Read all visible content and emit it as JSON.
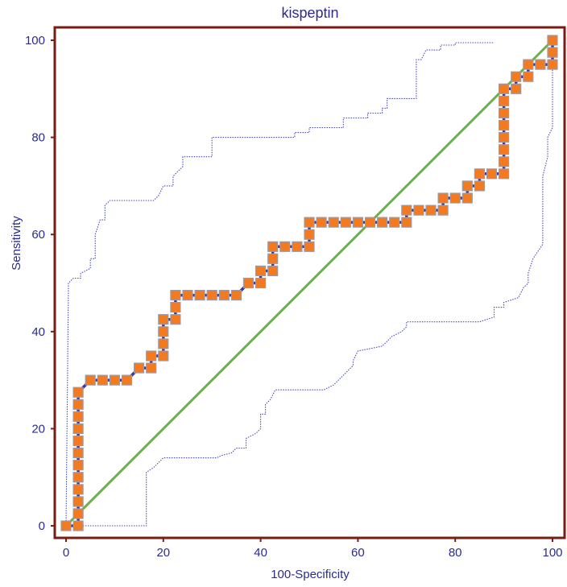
{
  "chart_data": {
    "type": "line",
    "title": "kispeptin",
    "xlabel": "100-Specificity",
    "ylabel": "Sensitivity",
    "xlim": [
      0,
      100
    ],
    "ylim": [
      0,
      100
    ],
    "xticks": [
      "0",
      "20",
      "40",
      "60",
      "80",
      "100"
    ],
    "yticks": [
      "0",
      "20",
      "40",
      "60",
      "80",
      "100"
    ],
    "grid": false,
    "colors": {
      "frame": "#7a1c14",
      "roc_line": "#3a36a0",
      "marker_fill": "#f47a20",
      "marker_edge": "#9a9aa8",
      "reference": "#6ab04c",
      "ci_bounds": "#4a4ab8",
      "text": "#2b2b8f"
    },
    "series": [
      {
        "style": "roc-curve-with-markers",
        "points": [
          [
            0,
            0
          ],
          [
            2.5,
            0
          ],
          [
            2.5,
            2.5
          ],
          [
            2.5,
            5
          ],
          [
            2.5,
            7.5
          ],
          [
            2.5,
            10
          ],
          [
            2.5,
            12.5
          ],
          [
            2.5,
            15
          ],
          [
            2.5,
            17.5
          ],
          [
            2.5,
            20
          ],
          [
            2.5,
            22.5
          ],
          [
            2.5,
            25
          ],
          [
            2.5,
            27.5
          ],
          [
            5,
            30
          ],
          [
            7.5,
            30
          ],
          [
            10,
            30
          ],
          [
            12.5,
            30
          ],
          [
            15,
            32.5
          ],
          [
            17.5,
            32.5
          ],
          [
            17.5,
            35
          ],
          [
            20,
            35
          ],
          [
            20,
            37.5
          ],
          [
            20,
            40
          ],
          [
            20,
            42.5
          ],
          [
            22.5,
            42.5
          ],
          [
            22.5,
            45
          ],
          [
            22.5,
            47.5
          ],
          [
            25,
            47.5
          ],
          [
            27.5,
            47.5
          ],
          [
            30,
            47.5
          ],
          [
            32.5,
            47.5
          ],
          [
            35,
            47.5
          ],
          [
            37.5,
            50
          ],
          [
            40,
            50
          ],
          [
            40,
            52.5
          ],
          [
            42.5,
            52.5
          ],
          [
            42.5,
            55
          ],
          [
            42.5,
            57.5
          ],
          [
            45,
            57.5
          ],
          [
            47.5,
            57.5
          ],
          [
            50,
            57.5
          ],
          [
            50,
            60
          ],
          [
            50,
            62.5
          ],
          [
            52.5,
            62.5
          ],
          [
            55,
            62.5
          ],
          [
            57.5,
            62.5
          ],
          [
            60,
            62.5
          ],
          [
            62.5,
            62.5
          ],
          [
            65,
            62.5
          ],
          [
            67.5,
            62.5
          ],
          [
            70,
            62.5
          ],
          [
            70,
            65
          ],
          [
            72.5,
            65
          ],
          [
            75,
            65
          ],
          [
            77.5,
            65
          ],
          [
            77.5,
            67.5
          ],
          [
            80,
            67.5
          ],
          [
            82.5,
            67.5
          ],
          [
            82.5,
            70
          ],
          [
            85,
            70
          ],
          [
            85,
            72.5
          ],
          [
            87.5,
            72.5
          ],
          [
            90,
            72.5
          ],
          [
            90,
            75
          ],
          [
            90,
            77.5
          ],
          [
            90,
            80
          ],
          [
            90,
            82.5
          ],
          [
            90,
            85
          ],
          [
            90,
            87.5
          ],
          [
            90,
            90
          ],
          [
            92.5,
            90
          ],
          [
            92.5,
            92.5
          ],
          [
            95,
            92.5
          ],
          [
            95,
            95
          ],
          [
            97.5,
            95
          ],
          [
            100,
            95
          ],
          [
            100,
            97.5
          ],
          [
            100,
            100
          ]
        ]
      },
      {
        "style": "reference-diagonal",
        "points": [
          [
            0,
            0
          ],
          [
            100,
            100
          ]
        ]
      },
      {
        "style": "upper-confidence-bound",
        "points": [
          [
            0,
            0
          ],
          [
            0.5,
            50
          ],
          [
            1.5,
            51
          ],
          [
            3,
            51
          ],
          [
            3,
            52
          ],
          [
            5,
            53
          ],
          [
            5,
            55
          ],
          [
            6,
            55
          ],
          [
            6,
            60
          ],
          [
            7,
            63
          ],
          [
            8,
            63
          ],
          [
            8,
            66
          ],
          [
            9,
            67
          ],
          [
            18,
            67
          ],
          [
            19,
            68
          ],
          [
            20,
            70
          ],
          [
            22,
            70
          ],
          [
            22,
            72
          ],
          [
            24,
            74
          ],
          [
            24,
            76
          ],
          [
            30,
            76
          ],
          [
            30,
            80
          ],
          [
            47,
            80
          ],
          [
            47,
            81
          ],
          [
            50,
            81
          ],
          [
            50,
            82
          ],
          [
            57,
            82
          ],
          [
            57,
            84
          ],
          [
            62,
            84
          ],
          [
            62,
            85
          ],
          [
            65,
            85
          ],
          [
            65,
            86
          ],
          [
            66,
            86
          ],
          [
            66,
            88
          ],
          [
            70,
            88
          ],
          [
            72,
            88
          ],
          [
            72,
            96
          ],
          [
            73,
            96
          ],
          [
            74,
            98
          ],
          [
            77,
            98
          ],
          [
            77,
            99
          ],
          [
            80,
            99
          ],
          [
            80,
            99.5
          ],
          [
            88,
            99.5
          ]
        ]
      },
      {
        "style": "lower-confidence-bound",
        "points": [
          [
            0,
            0
          ],
          [
            16.5,
            0
          ],
          [
            16.5,
            11
          ],
          [
            18,
            12
          ],
          [
            19,
            13
          ],
          [
            20,
            14
          ],
          [
            31,
            14
          ],
          [
            32,
            14.5
          ],
          [
            34,
            15
          ],
          [
            35,
            16
          ],
          [
            37,
            16
          ],
          [
            37,
            18
          ],
          [
            39,
            19
          ],
          [
            40,
            20
          ],
          [
            40,
            23
          ],
          [
            41,
            23
          ],
          [
            41,
            25
          ],
          [
            42,
            26
          ],
          [
            43,
            28
          ],
          [
            50,
            28
          ],
          [
            53,
            28
          ],
          [
            55,
            29
          ],
          [
            56,
            30
          ],
          [
            57,
            31
          ],
          [
            58,
            32
          ],
          [
            59,
            33
          ],
          [
            59,
            34
          ],
          [
            60,
            36
          ],
          [
            65,
            37
          ],
          [
            66,
            38
          ],
          [
            67,
            39
          ],
          [
            69,
            40
          ],
          [
            70,
            41
          ],
          [
            70,
            42
          ],
          [
            85,
            42
          ],
          [
            88,
            43
          ],
          [
            88,
            45
          ],
          [
            90,
            45
          ],
          [
            90,
            46
          ],
          [
            93,
            47
          ],
          [
            94,
            49
          ],
          [
            95,
            50
          ],
          [
            95,
            52
          ],
          [
            96,
            55
          ],
          [
            98,
            58
          ],
          [
            98,
            62
          ],
          [
            98,
            65
          ],
          [
            98,
            68
          ],
          [
            98,
            72
          ],
          [
            99,
            76
          ],
          [
            99,
            80
          ],
          [
            100,
            82
          ],
          [
            100,
            84
          ],
          [
            100,
            90
          ],
          [
            100,
            94
          ]
        ]
      }
    ]
  }
}
